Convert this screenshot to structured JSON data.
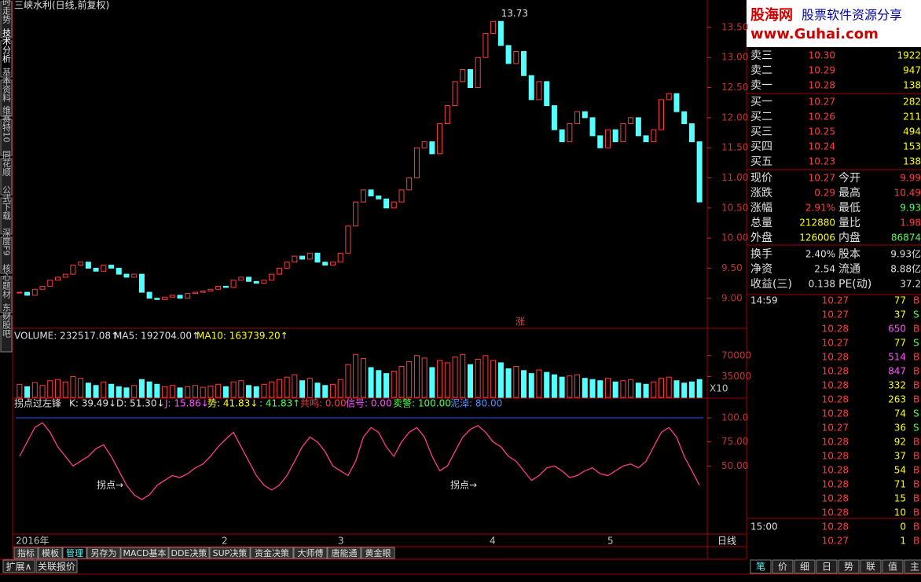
{
  "title": "三峡水利(日线,前复权)",
  "side_tabs": [
    "分时走势",
    "技术分析",
    "基本资料",
    "维赛特10",
    "同花顺",
    "公式下载",
    "深度F9",
    "核心题材",
    "东财股吧"
  ],
  "price_chart": {
    "type": "candlestick",
    "peak_label": "13.73",
    "marker": "涨",
    "close": [
      9.1,
      9.05,
      9.15,
      9.2,
      9.3,
      9.35,
      9.4,
      9.55,
      9.6,
      9.5,
      9.45,
      9.55,
      9.5,
      9.4,
      9.35,
      9.4,
      9.1,
      9.0,
      8.98,
      9.02,
      9.05,
      9.0,
      9.08,
      9.1,
      9.12,
      9.15,
      9.2,
      9.18,
      9.3,
      9.35,
      9.28,
      9.25,
      9.3,
      9.4,
      9.5,
      9.6,
      9.7,
      9.65,
      9.75,
      9.6,
      9.55,
      9.6,
      9.75,
      10.2,
      10.6,
      10.8,
      10.7,
      10.65,
      10.5,
      10.6,
      10.8,
      11.0,
      11.5,
      11.6,
      11.4,
      11.9,
      12.2,
      12.6,
      12.8,
      12.5,
      13.0,
      13.4,
      13.6,
      13.2,
      12.9,
      13.1,
      12.7,
      12.3,
      12.6,
      12.2,
      11.8,
      11.6,
      11.9,
      12.1,
      12.0,
      11.7,
      11.5,
      11.8,
      11.6,
      11.9,
      12.0,
      11.7,
      11.6,
      11.8,
      12.3,
      12.4,
      12.1,
      11.9,
      11.6,
      10.6
    ],
    "ylim": [
      8.54,
      13.76
    ],
    "yticks": [
      {
        "value": 9,
        "label": "9.00"
      },
      {
        "value": 9.5,
        "label": "9.50"
      },
      {
        "value": 10,
        "label": "10.00"
      },
      {
        "value": 10.5,
        "label": "10.50"
      },
      {
        "value": 11,
        "label": "11.00"
      },
      {
        "value": 11.5,
        "label": "11.50"
      },
      {
        "value": 12,
        "label": "12.00"
      },
      {
        "value": 12.5,
        "label": "12.50"
      },
      {
        "value": 13,
        "label": "13.00"
      },
      {
        "value": 13.5,
        "label": "13.50"
      }
    ],
    "up_color": "#ff3c3c",
    "down_color": "#54ffff"
  },
  "volume_chart": {
    "type": "bar",
    "header": [
      "VOLUME: 232517.08↑",
      "MA5: 192704.00↑",
      "MA10: 163739.20↑"
    ],
    "scale_label": "X10",
    "values": [
      22000,
      18000,
      25000,
      20000,
      28000,
      30000,
      26000,
      35000,
      32000,
      24000,
      20000,
      26000,
      22000,
      18000,
      16000,
      20000,
      30000,
      26000,
      22000,
      18000,
      20000,
      16000,
      18000,
      20000,
      17000,
      19000,
      22000,
      18000,
      26000,
      28000,
      20000,
      18000,
      22000,
      26000,
      30000,
      34000,
      38000,
      28000,
      32000,
      24000,
      20000,
      22000,
      30000,
      55000,
      72000,
      65000,
      50000,
      45000,
      40000,
      44000,
      52000,
      60000,
      70000,
      66000,
      50000,
      62000,
      58000,
      68000,
      72000,
      55000,
      64000,
      70000,
      62000,
      58000,
      48000,
      52000,
      45000,
      40000,
      46000,
      42000,
      38000,
      34000,
      36000,
      38000,
      32000,
      30000,
      28000,
      32000,
      26000,
      28000,
      30000,
      24000,
      22000,
      26000,
      32000,
      34000,
      28000,
      24000,
      26000,
      30000
    ],
    "ylim": [
      0,
      100000
    ],
    "yticks": [
      35000,
      70000
    ]
  },
  "indicator": {
    "type": "line",
    "annotation": "拐点→",
    "header": [
      "拐点过左锋",
      "K: 39.49↓",
      "D: 51.30↓",
      "J: 15.86↓",
      "势: 41.83↓",
      ": 41.83↑",
      "共鸣: 0.00",
      "信号: 0.00",
      "卖警: 100.00",
      "泥淖: 80.00"
    ],
    "k": [
      60,
      75,
      90,
      95,
      85,
      70,
      60,
      50,
      55,
      60,
      68,
      72,
      60,
      45,
      30,
      20,
      15,
      20,
      30,
      35,
      40,
      38,
      42,
      48,
      52,
      60,
      70,
      78,
      85,
      70,
      55,
      40,
      30,
      25,
      30,
      40,
      55,
      70,
      80,
      75,
      65,
      50,
      45,
      40,
      55,
      80,
      90,
      85,
      70,
      60,
      75,
      85,
      90,
      80,
      60,
      45,
      50,
      65,
      80,
      88,
      92,
      85,
      75,
      70,
      60,
      55,
      45,
      35,
      40,
      48,
      50,
      45,
      38,
      40,
      45,
      48,
      42,
      40,
      45,
      50,
      52,
      48,
      55,
      70,
      85,
      90,
      80,
      60,
      45,
      30
    ],
    "color": "#ff3c8c",
    "ylim": [
      -20,
      118
    ],
    "yticks": [
      {
        "value": 50,
        "label": "50.00"
      },
      {
        "value": 75,
        "label": "75.00"
      },
      {
        "value": 100,
        "label": "100.0"
      }
    ]
  },
  "dates": {
    "labels": [
      "2016年",
      "2",
      "3",
      "4",
      "5"
    ],
    "period": "日线"
  },
  "tabs": [
    "指标",
    "模板",
    "管理",
    "另存为",
    "MACD基本",
    "DDE决策",
    "SUP决策",
    "资金决策",
    "大师傅",
    "唐能通",
    "黄金眼"
  ],
  "bottom_tabs": [
    "扩展∧",
    "关联报价"
  ],
  "watermark": [
    "股海网",
    "股票软件资源分享",
    "www.Guhai.com"
  ],
  "order_book": [
    [
      "卖三",
      "10.30",
      "1922"
    ],
    [
      "卖二",
      "10.29",
      "947"
    ],
    [
      "卖一",
      "10.28",
      "138"
    ],
    [
      "买一",
      "10.27",
      "282"
    ],
    [
      "买二",
      "10.26",
      "211"
    ],
    [
      "买三",
      "10.25",
      "494"
    ],
    [
      "买四",
      "10.24",
      "153"
    ],
    [
      "买五",
      "10.23",
      "138"
    ]
  ],
  "quote": [
    [
      "现价",
      "10.27",
      "今开",
      "9.99"
    ],
    [
      "涨跌",
      "0.29",
      "最高",
      "10.49"
    ],
    [
      "涨幅",
      "2.91%",
      "最低",
      "9.93"
    ],
    [
      "总量",
      "212880",
      "量比",
      "1.98"
    ],
    [
      "外盘",
      "126006",
      "内盘",
      "86874"
    ],
    [
      "换手",
      "2.40%",
      "股本",
      "9.93亿"
    ],
    [
      "净资",
      "2.54",
      "流通",
      "8.88亿"
    ],
    [
      "收益(三)",
      "0.138",
      "PE(动)",
      "37.2"
    ]
  ],
  "ticks": [
    [
      "14:59",
      "10.27",
      "77",
      "B"
    ],
    [
      "",
      "10.27",
      "37",
      "S"
    ],
    [
      "",
      "10.28",
      "650",
      "B"
    ],
    [
      "",
      "10.27",
      "77",
      "S"
    ],
    [
      "",
      "10.28",
      "514",
      "B"
    ],
    [
      "",
      "10.28",
      "847",
      "B"
    ],
    [
      "",
      "10.28",
      "332",
      "B"
    ],
    [
      "",
      "10.28",
      "263",
      "B"
    ],
    [
      "",
      "10.28",
      "74",
      "S"
    ],
    [
      "",
      "10.27",
      "36",
      "S"
    ],
    [
      "",
      "10.28",
      "92",
      "B"
    ],
    [
      "",
      "10.28",
      "37",
      "B"
    ],
    [
      "",
      "10.28",
      "54",
      "B"
    ],
    [
      "",
      "10.28",
      "71",
      "B"
    ],
    [
      "",
      "10.28",
      "15",
      "B"
    ],
    [
      "",
      "10.28",
      "10",
      "B"
    ],
    [
      "15:00",
      "10.28",
      "0",
      "B"
    ],
    [
      "",
      "10.27",
      "1",
      "B"
    ]
  ],
  "right_tabs": [
    "笔",
    "价",
    "细",
    "日",
    "势",
    "联",
    "值",
    "主"
  ]
}
